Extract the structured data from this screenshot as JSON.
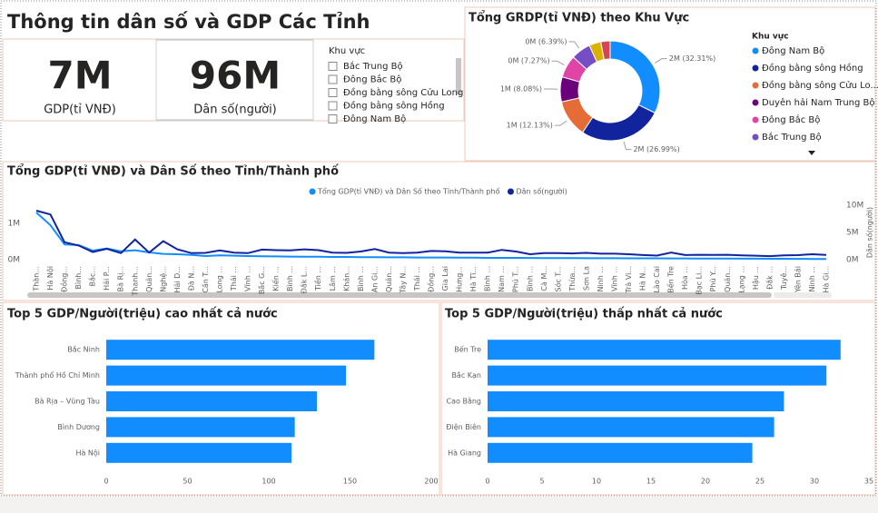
{
  "header": {
    "title": "Thông tin dân số và GDP Các Tỉnh"
  },
  "cards": [
    {
      "value": "7M",
      "label": "GDP(tỉ VNĐ)"
    },
    {
      "value": "96M",
      "label": "Dân số(người)"
    }
  ],
  "slicer": {
    "title": "Khu vực",
    "items": [
      "Bắc Trung Bộ",
      "Đông Bắc Bộ",
      "Đồng bằng sông Cửu Long",
      "Đồng bằng sông Hồng",
      "Đông Nam Bộ"
    ]
  },
  "chart_data": [
    {
      "type": "pie",
      "donut": true,
      "title": "Tổng GRDP(tỉ VNĐ) theo Khu Vực",
      "legend_title": "Khu vực",
      "categories": [
        "Đông Nam Bộ",
        "Đồng bằng sông Hồng",
        "Đồng bằng sông Cửu Lo...",
        "Duyên hải Nam Trung Bộ",
        "Đông Bắc Bộ",
        "Bắc Trung Bộ",
        null,
        null
      ],
      "values": [
        32.31,
        26.99,
        12.13,
        8.08,
        7.27,
        6.39,
        3.8,
        3.03
      ],
      "value_labels": [
        "2M (32.31%)",
        "2M (26.99%)",
        "1M (12.13%)",
        "1M (8.08%)",
        "0M (7.27%)",
        "0M (6.39%)",
        null,
        null
      ],
      "colors": [
        "#118DFF",
        "#12239E",
        "#E66C37",
        "#6B007B",
        "#E044A7",
        "#744EC2",
        "#D9B300",
        "#D64550"
      ]
    },
    {
      "type": "line",
      "title": "Tổng GDP(tỉ VNĐ) và Dân Số theo Tỉnh/Thành phố",
      "categories": [
        "Thàn...",
        "Hà Nội",
        "Đồng...",
        "Bình...",
        "Bắc...",
        "Hải P...",
        "Bà Rị...",
        "Thanh...",
        "Quản...",
        "Nghệ...",
        "Hải D...",
        "Đà N...",
        "Cần T...",
        "Long ...",
        "Thái ...",
        "Vĩnh ...",
        "Bắc G...",
        "Kiến ...",
        "Bình ...",
        "Đắk L...",
        "Tiền ...",
        "Lâm ...",
        "Khán...",
        "Bình ...",
        "An Gi...",
        "Quản...",
        "Tây N...",
        "Thái ...",
        "Đồng...",
        "Gia Lai",
        "Hưng...",
        "Hà Tĩ...",
        "Bình ...",
        "Nam ...",
        "Phú T...",
        "Bình ...",
        "Cà M...",
        "Sóc T...",
        "Thừa...",
        "Sơn La",
        "Ninh ...",
        "Vĩnh ...",
        "Trà Vi...",
        "Hà N...",
        "Lào Cai",
        "Bến Tre",
        "Hòa ...",
        "Bạc Li...",
        "Phú Y...",
        "Quản...",
        "Lạng ...",
        "Hậu ...",
        "Đắk ...",
        "Tuyê...",
        "Yên Bái",
        "Ninh ...",
        "Hà Gi..."
      ],
      "series": [
        {
          "name": "Tổng GDP(tỉ VNĐ) và Dân Số theo Tỉnh/Thành phố",
          "color": "#118DFF",
          "values": [
            1300000,
            950000,
            420000,
            400000,
            250000,
            310000,
            230000,
            260000,
            200000,
            160000,
            150000,
            130000,
            100000,
            120000,
            110000,
            100000,
            95000,
            90000,
            85000,
            80000,
            80000,
            75000,
            75000,
            70000,
            70000,
            65000,
            65000,
            60000,
            60000,
            60000,
            55000,
            55000,
            50000,
            50000,
            50000,
            48000,
            45000,
            45000,
            45000,
            42000,
            40000,
            40000,
            38000,
            38000,
            36000,
            35000,
            33000,
            32000,
            30000,
            30000,
            28000,
            27000,
            25000,
            24000,
            22000,
            20000,
            20000
          ]
        },
        {
          "name": "Dân số(người)",
          "color": "#12239E",
          "axis": "y2",
          "values": [
            9000000,
            8300000,
            3200000,
            2600000,
            1400000,
            2000000,
            1200000,
            3700000,
            1300000,
            3400000,
            1900000,
            1200000,
            1250000,
            1700000,
            1300000,
            1200000,
            1850000,
            1750000,
            1700000,
            1900000,
            1750000,
            1300000,
            1250000,
            1500000,
            1950000,
            1300000,
            1200000,
            1300000,
            1600000,
            1550000,
            1300000,
            1300000,
            1300000,
            1800000,
            1500000,
            1000000,
            1200000,
            1200000,
            1150000,
            1250000,
            1100000,
            1100000,
            1000000,
            850000,
            750000,
            1300000,
            850000,
            900000,
            880000,
            900000,
            800000,
            730000,
            650000,
            800000,
            830000,
            1000000,
            870000
          ]
        }
      ],
      "ylim": [
        0,
        1500000
      ],
      "yticks": [
        {
          "value": 0,
          "label": "0M"
        },
        {
          "value": 1000000,
          "label": "1M"
        }
      ],
      "y2lim": [
        0,
        10000000
      ],
      "y2ticks": [
        {
          "value": 0,
          "label": "0M"
        },
        {
          "value": 5000000,
          "label": "5M"
        },
        {
          "value": 10000000,
          "label": "10M"
        }
      ],
      "y2_label": "Dân số(người)"
    },
    {
      "type": "bar",
      "orientation": "horizontal",
      "title": "Top 5 GDP/Người(triệu) cao nhất cả nước",
      "categories": [
        "Bắc Ninh",
        "Thành phố Hồ Chí Minh",
        "Bà Rịa – Vũng Tàu",
        "Bình Dương",
        "Hà Nội"
      ],
      "values": [
        165,
        147.5,
        129.6,
        116,
        114
      ],
      "color": "#118DFF",
      "xlim": [
        0,
        200
      ],
      "xticks": [
        0,
        50,
        100,
        150,
        200
      ]
    },
    {
      "type": "bar",
      "orientation": "horizontal",
      "title": "Top 5 GDP/Người(triệu) thấp nhất cả nước",
      "categories": [
        "Bến Tre",
        "Bắc Kạn",
        "Cao Bằng",
        "Điện Biên",
        "Hà Giang"
      ],
      "values": [
        32.4,
        31.1,
        27.2,
        26.3,
        24.3
      ],
      "color": "#118DFF",
      "xlim": [
        0,
        35
      ],
      "xticks": [
        0,
        5,
        10,
        15,
        20,
        25,
        30,
        35
      ]
    }
  ]
}
